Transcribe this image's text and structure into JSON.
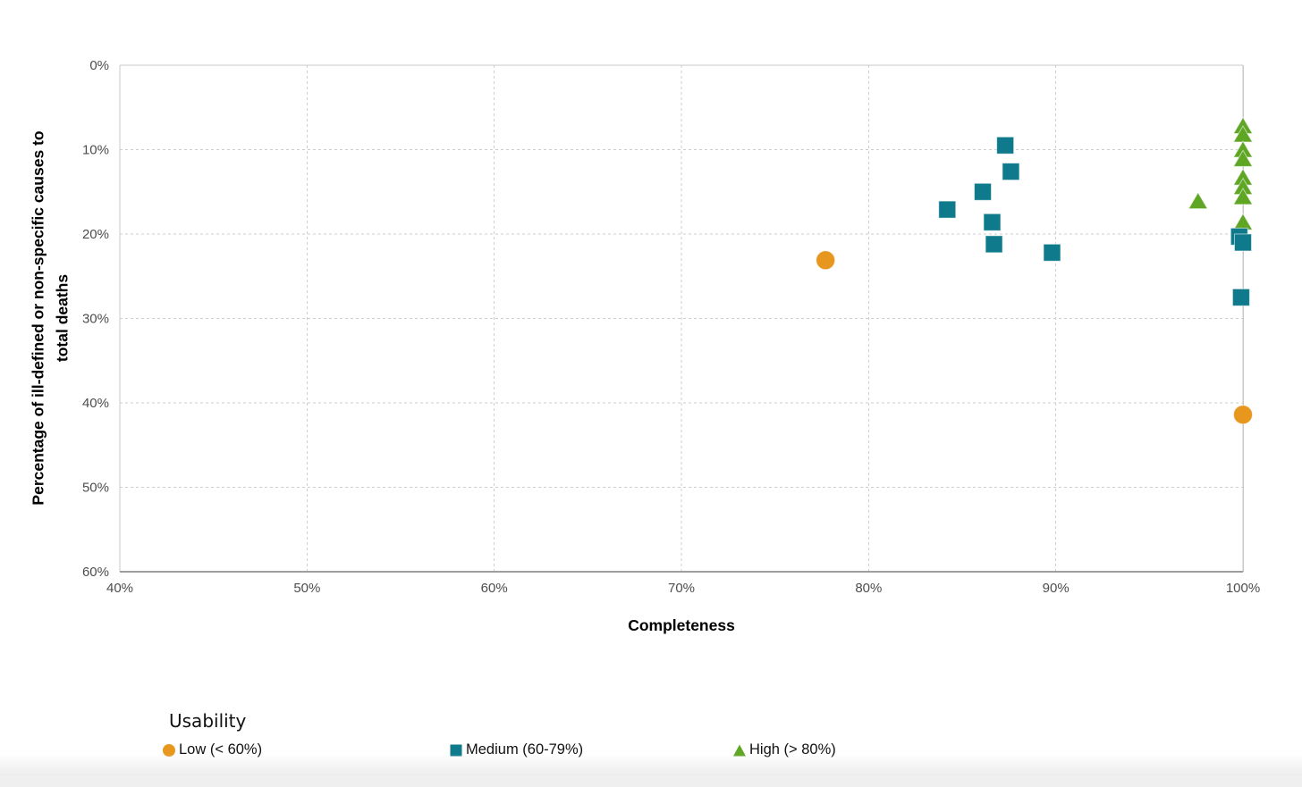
{
  "chart_data": {
    "type": "scatter",
    "title": "",
    "xlabel": "Completeness",
    "ylabel": "Percentage of ill-defined or non-specific causes to\ntotal deaths",
    "x_ticks": [
      "40%",
      "50%",
      "60%",
      "70%",
      "80%",
      "90%",
      "100%"
    ],
    "y_ticks": [
      "0%",
      "10%",
      "20%",
      "30%",
      "40%",
      "50%",
      "60%"
    ],
    "xlim": [
      40,
      100
    ],
    "ylim": [
      0,
      60
    ],
    "y_axis_direction": "inverted (0% at top)",
    "grid": "dashed",
    "legend_position": "bottom-left",
    "legend_title": "Usability",
    "series": [
      {
        "name": "Low (< 60%)",
        "marker": "circle",
        "color": "#E8971E",
        "points": [
          [
            77.7,
            23.1
          ],
          [
            100,
            41.4
          ]
        ]
      },
      {
        "name": "Medium (60-79%)",
        "marker": "square",
        "color": "#0E7A8C",
        "points": [
          [
            87.3,
            9.5
          ],
          [
            87.6,
            12.6
          ],
          [
            86.1,
            15.0
          ],
          [
            84.2,
            17.1
          ],
          [
            86.6,
            18.6
          ],
          [
            86.7,
            21.2
          ],
          [
            89.8,
            22.2
          ],
          [
            99.8,
            20.3
          ],
          [
            100,
            21.0
          ],
          [
            99.9,
            27.5
          ]
        ]
      },
      {
        "name": "High (> 80%)",
        "marker": "triangle",
        "color": "#5EA624",
        "points": [
          [
            100,
            7.2
          ],
          [
            100,
            8.2
          ],
          [
            100,
            10.0
          ],
          [
            100,
            11.1
          ],
          [
            100,
            13.3
          ],
          [
            100,
            14.4
          ],
          [
            100,
            15.6
          ],
          [
            100,
            18.6
          ],
          [
            97.6,
            16.1
          ]
        ]
      }
    ],
    "colors": {
      "grid_line": "#cdcdcd",
      "plot_border": "#c9c9c9",
      "bottom_axis": "#9d9d9d",
      "tick_label": "#4d4d4d"
    }
  },
  "legend": {
    "title": "Usability",
    "items": [
      {
        "label": "Low (< 60%)",
        "marker": "circle-icon"
      },
      {
        "label": "Medium (60-79%)",
        "marker": "square-icon"
      },
      {
        "label": "High (> 80%)",
        "marker": "triangle-icon"
      }
    ]
  }
}
